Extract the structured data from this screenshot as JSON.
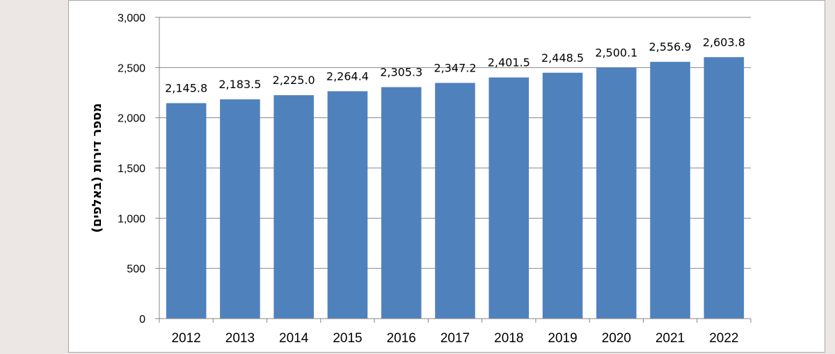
{
  "chart_data": {
    "type": "bar",
    "categories": [
      "2012",
      "2013",
      "2014",
      "2015",
      "2016",
      "2017",
      "2018",
      "2019",
      "2020",
      "2021",
      "2022"
    ],
    "values": [
      2145.8,
      2183.5,
      2225.0,
      2264.4,
      2305.3,
      2347.2,
      2401.5,
      2448.5,
      2500.1,
      2556.9,
      2603.8
    ],
    "data_labels": [
      "2,145.8",
      "2,183.5",
      "2,225.0",
      "2,264.4",
      "2,305.3",
      "2,347.2",
      "2,401.5",
      "2,448.5",
      "2,500.1",
      "2,556.9",
      "2,603.8"
    ],
    "ylabel": "מספר דירות (באלפים)",
    "xlabel": "",
    "ylim": [
      0,
      3000
    ],
    "yticks": [
      0,
      500,
      1000,
      1500,
      2000,
      2500,
      3000
    ],
    "ytick_labels": [
      "0",
      "500",
      "1,000",
      "1,500",
      "2,000",
      "2,500",
      "3,000"
    ],
    "grid": true,
    "legend": "none",
    "colors": {
      "bar": "#4f81bd",
      "grid": "#868686",
      "axis": "#868686"
    }
  }
}
